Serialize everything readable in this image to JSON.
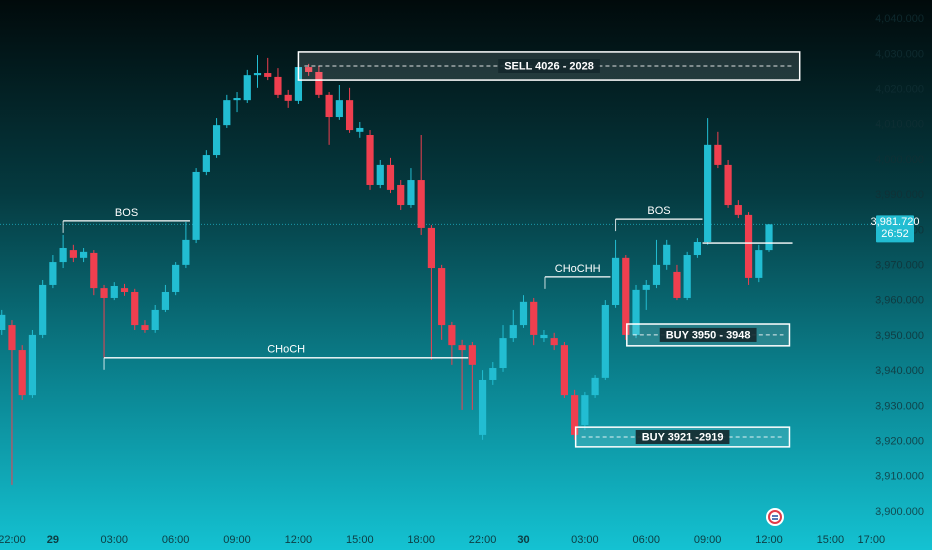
{
  "chart_data": {
    "type": "candlestick",
    "colors": {
      "up": "#22bdd2",
      "down": "#ef3f4f"
    },
    "xlim": [
      -1.17,
      84.36
    ],
    "ylim": [
      3889.2,
      4045.45
    ],
    "xticks": [
      {
        "value": 0,
        "label": "22:00"
      },
      {
        "value": 4,
        "label": "29"
      },
      {
        "value": 10,
        "label": "03:00"
      },
      {
        "value": 16,
        "label": "06:00"
      },
      {
        "value": 22,
        "label": "09:00"
      },
      {
        "value": 28,
        "label": "12:00"
      },
      {
        "value": 34,
        "label": "15:00"
      },
      {
        "value": 40,
        "label": "18:00"
      },
      {
        "value": 46,
        "label": "22:00"
      },
      {
        "value": 50,
        "label": "30"
      },
      {
        "value": 56,
        "label": "03:00"
      },
      {
        "value": 62,
        "label": "06:00"
      },
      {
        "value": 68,
        "label": "09:00"
      },
      {
        "value": 74,
        "label": "12:00"
      },
      {
        "value": 80,
        "label": "15:00"
      },
      {
        "value": 84,
        "label": "17:00"
      }
    ],
    "yticks": [
      {
        "value": 3900,
        "label": "3,900.000"
      },
      {
        "value": 3910,
        "label": "3,910.000"
      },
      {
        "value": 3920,
        "label": "3,920.000"
      },
      {
        "value": 3930,
        "label": "3,930.000"
      },
      {
        "value": 3940,
        "label": "3,940.000"
      },
      {
        "value": 3950,
        "label": "3,950.000"
      },
      {
        "value": 3960,
        "label": "3,960.000"
      },
      {
        "value": 3970,
        "label": "3,970.000"
      },
      {
        "value": 3980,
        "label": "3,980.000"
      },
      {
        "value": 3990,
        "label": "3,990.000"
      },
      {
        "value": 4000,
        "label": "4,000.000"
      },
      {
        "value": 4010,
        "label": "4,010.000"
      },
      {
        "value": 4020,
        "label": "4,020.000"
      },
      {
        "value": 4030,
        "label": "4,030.000"
      },
      {
        "value": 4040,
        "label": "4,040.000"
      }
    ],
    "x": [
      -1,
      0,
      1,
      2,
      3,
      4,
      5,
      6,
      7,
      8,
      9,
      10,
      11,
      12,
      13,
      14,
      15,
      16,
      17,
      18,
      19,
      20,
      21,
      22,
      23,
      24,
      25,
      26,
      27,
      28,
      29,
      30,
      31,
      32,
      33,
      34,
      35,
      36,
      37,
      38,
      39,
      40,
      41,
      42,
      43,
      44,
      45,
      46,
      47,
      48,
      49,
      50,
      51,
      52,
      53,
      54,
      55,
      56,
      57,
      58,
      59,
      60,
      61,
      62,
      63,
      64,
      65,
      66,
      67,
      68,
      69,
      70,
      71,
      72,
      73,
      74
    ],
    "open": [
      3951.7,
      3953.1,
      3946.0,
      3933.2,
      3950.3,
      3964.5,
      3971.0,
      3974.4,
      3972.2,
      3973.6,
      3963.6,
      3960.8,
      3963.6,
      3962.5,
      3953.1,
      3951.7,
      3957.4,
      3962.5,
      3970.2,
      3977.3,
      3996.6,
      4001.4,
      4009.9,
      4017.0,
      4017.0,
      4024.1,
      4024.7,
      4023.6,
      4018.5,
      4016.8,
      4026.4,
      4025.0,
      4018.5,
      4012.2,
      4017.0,
      4008.0,
      4007.1,
      3992.9,
      3998.6,
      3992.9,
      3987.2,
      3994.3,
      3980.7,
      3969.3,
      3953.1,
      3947.4,
      3947.4,
      3921.9,
      3937.5,
      3940.9,
      3949.4,
      3953.1,
      3959.7,
      3949.4,
      3949.4,
      3947.4,
      3933.2,
      3924.7,
      3933.2,
      3938.1,
      3958.8,
      3972.2,
      3950.3,
      3963.1,
      3964.5,
      3970.2,
      3968.2,
      3960.8,
      3973.0,
      3976.7,
      4004.3,
      3998.6,
      3987.2,
      3984.4,
      3966.5,
      3974.4
    ],
    "high": [
      3957.4,
      3954.5,
      3947.4,
      3951.7,
      3965.9,
      3973.0,
      3978.7,
      3975.9,
      3975.0,
      3974.4,
      3964.5,
      3965.3,
      3964.8,
      3963.4,
      3954.5,
      3958.8,
      3964.5,
      3971.0,
      3982.4,
      3997.7,
      4002.8,
      4011.9,
      4018.5,
      4019.3,
      4025.6,
      4029.8,
      4029.0,
      4026.1,
      4019.9,
      4027.5,
      4027.3,
      4026.7,
      4019.3,
      4021.3,
      4020.5,
      4010.8,
      4008.5,
      4000.0,
      4000.6,
      3994.3,
      3997.7,
      4007.1,
      3981.5,
      3970.2,
      3954.0,
      3948.9,
      3948.3,
      3940.3,
      3942.6,
      3953.1,
      3957.4,
      3961.6,
      3960.8,
      3951.7,
      3950.9,
      3948.3,
      3934.7,
      3934.1,
      3938.9,
      3960.2,
      3977.3,
      3973.0,
      3964.5,
      3965.9,
      3977.3,
      3977.3,
      3970.2,
      3973.9,
      3977.8,
      4011.9,
      4008.0,
      4000.0,
      3988.6,
      3985.2,
      3975.9,
      3981.8
    ],
    "low": [
      3950.3,
      3907.7,
      3931.8,
      3932.4,
      3949.4,
      3963.6,
      3969.3,
      3971.0,
      3971.0,
      3961.6,
      3943.8,
      3960.2,
      3961.4,
      3951.7,
      3950.9,
      3950.9,
      3956.8,
      3961.6,
      3969.3,
      3976.4,
      3995.7,
      4000.6,
      4009.1,
      4013.6,
      4016.2,
      4020.5,
      4022.7,
      4017.6,
      4014.8,
      4015.9,
      4023.9,
      4017.6,
      4004.3,
      4011.4,
      4007.7,
      4006.3,
      3991.5,
      3992.0,
      3990.6,
      3985.8,
      3986.4,
      3978.7,
      3943.2,
      3948.9,
      3941.8,
      3929.0,
      3929.0,
      3920.5,
      3936.1,
      3939.8,
      3948.3,
      3952.3,
      3947.4,
      3948.3,
      3946.0,
      3932.4,
      3920.5,
      3923.3,
      3932.4,
      3937.5,
      3958.0,
      3948.9,
      3949.4,
      3957.4,
      3963.6,
      3968.8,
      3960.2,
      3960.2,
      3972.2,
      3975.9,
      3997.7,
      3986.4,
      3983.5,
      3964.5,
      3965.3,
      3973.9
    ],
    "close": [
      3956.0,
      3946.0,
      3933.2,
      3950.3,
      3964.5,
      3971.0,
      3975.0,
      3972.2,
      3973.9,
      3963.6,
      3960.8,
      3964.2,
      3962.5,
      3953.1,
      3951.7,
      3957.4,
      3962.5,
      3970.2,
      3977.3,
      3996.6,
      4001.4,
      4009.9,
      4017.0,
      4017.6,
      4024.1,
      4024.7,
      4023.6,
      4018.5,
      4016.8,
      4026.4,
      4025.0,
      4018.5,
      4012.2,
      4017.0,
      4008.5,
      4009.1,
      3992.9,
      3998.6,
      3991.5,
      3987.2,
      3994.3,
      3980.7,
      3969.3,
      3953.1,
      3947.4,
      3946.0,
      3941.8,
      3937.5,
      3940.9,
      3949.4,
      3953.1,
      3959.7,
      3950.3,
      3950.3,
      3947.4,
      3933.2,
      3921.9,
      3933.2,
      3938.1,
      3958.8,
      3972.2,
      3950.3,
      3963.1,
      3964.5,
      3970.2,
      3975.9,
      3960.8,
      3973.0,
      3976.7,
      4004.3,
      3998.6,
      3987.2,
      3984.4,
      3966.5,
      3974.4,
      3981.72
    ],
    "zones": [
      {
        "label": "SELL 4026 - 2028",
        "x0": 28,
        "x1": 77,
        "top": 4030.7,
        "bottom": 4022.7
      },
      {
        "label": "BUY 3950 - 3948",
        "x0": 60.1,
        "x1": 76,
        "top": 3953.4,
        "bottom": 3947.2
      },
      {
        "label": "BUY 3921 -2919",
        "x0": 55.1,
        "x1": 76,
        "top": 3924.1,
        "bottom": 3918.5
      }
    ],
    "levels": [
      {
        "label": "BOS",
        "x0": 5,
        "x1": 17.4,
        "y": 3982.7
      },
      {
        "label": "CHoCH",
        "x0": 9,
        "x1": 44.6,
        "y": 3943.8
      },
      {
        "label": "CHoCHH",
        "x0": 52.1,
        "x1": 58.5,
        "y": 3966.8
      },
      {
        "label": "BOS",
        "x0": 59,
        "x1": 67.5,
        "y": 3983.2
      },
      {
        "x0": 67.5,
        "x1": 76.3,
        "y": 3976.4
      }
    ],
    "last_price": {
      "value": 3981.72,
      "label": "3,981.720"
    },
    "countdown": "26:52"
  }
}
